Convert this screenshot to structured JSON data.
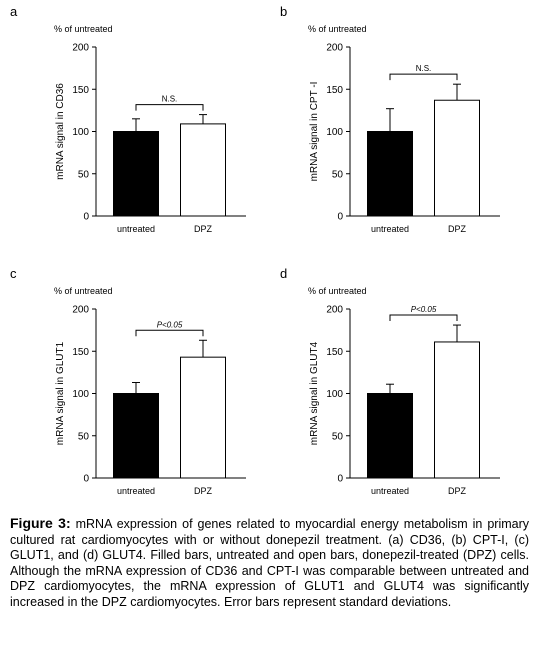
{
  "panels": [
    {
      "letter": "a",
      "units": "% of untreated",
      "ylabel": "mRNA signal in CD36",
      "significance": "N.S.",
      "sig_italic": false
    },
    {
      "letter": "b",
      "units": "% of untreated",
      "ylabel": "mRNA signal in CPT -I",
      "significance": "N.S.",
      "sig_italic": false
    },
    {
      "letter": "c",
      "units": "% of untreated",
      "ylabel": "mRNA signal in GLUT1",
      "significance": "P<0.05",
      "sig_italic": true
    },
    {
      "letter": "d",
      "units": "% of untreated",
      "ylabel": "mRNA signal in GLUT4",
      "significance": "P<0.05",
      "sig_italic": true
    }
  ],
  "chart_data": [
    {
      "type": "bar",
      "categories": [
        "untreated",
        "DPZ"
      ],
      "values": [
        100,
        109
      ],
      "error": [
        15,
        11
      ],
      "ylabel": "mRNA signal in CD36",
      "ylim": [
        0,
        200
      ],
      "yticks": [
        0,
        50,
        100,
        150,
        200
      ],
      "colors": [
        "#000000",
        "#ffffff"
      ]
    },
    {
      "type": "bar",
      "categories": [
        "untreated",
        "DPZ"
      ],
      "values": [
        100,
        137
      ],
      "error": [
        27,
        19
      ],
      "ylabel": "mRNA signal in CPT -I",
      "ylim": [
        0,
        200
      ],
      "yticks": [
        0,
        50,
        100,
        150,
        200
      ],
      "colors": [
        "#000000",
        "#ffffff"
      ]
    },
    {
      "type": "bar",
      "categories": [
        "untreated",
        "DPZ"
      ],
      "values": [
        100,
        143
      ],
      "error": [
        13,
        20
      ],
      "ylabel": "mRNA signal in GLUT1",
      "ylim": [
        0,
        200
      ],
      "yticks": [
        0,
        50,
        100,
        150,
        200
      ],
      "colors": [
        "#000000",
        "#ffffff"
      ]
    },
    {
      "type": "bar",
      "categories": [
        "untreated",
        "DPZ"
      ],
      "values": [
        100,
        161
      ],
      "error": [
        11,
        20
      ],
      "ylabel": "mRNA signal in GLUT4",
      "ylim": [
        0,
        200
      ],
      "yticks": [
        0,
        50,
        100,
        150,
        200
      ],
      "colors": [
        "#000000",
        "#ffffff"
      ]
    }
  ],
  "caption": {
    "label": "Figure 3:",
    "text": " mRNA expression of genes related to myocardial energy metabolism in primary cultured rat cardiomyocytes with or without donepezil treatment. (a) CD36, (b) CPT-I, (c) GLUT1, and (d) GLUT4. Filled bars, untreated and open bars, donepezil-treated (DPZ) cells. Although the mRNA expression of CD36 and CPT-I was comparable between untreated and DPZ cardiomyocytes, the mRNA expression of GLUT1 and GLUT4 was significantly increased in the DPZ cardiomyocytes. Error bars represent standard deviations."
  }
}
